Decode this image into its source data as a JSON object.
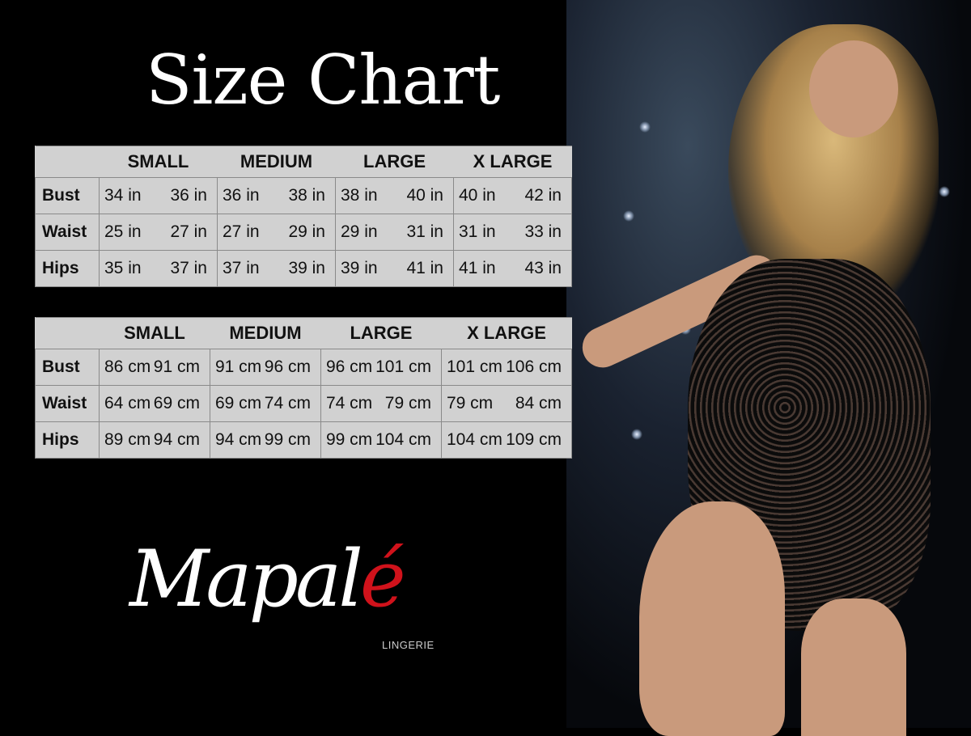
{
  "title": "Size Chart",
  "colors": {
    "background": "#000000",
    "table_bg": "#d1d1d1",
    "logo_accent": "#d0121b"
  },
  "inches_table": {
    "headers": [
      "SMALL",
      "MEDIUM",
      "LARGE",
      "X LARGE"
    ],
    "rows": [
      {
        "label": "Bust",
        "values": [
          "34 in",
          "36 in",
          "36 in",
          "38 in",
          "38 in",
          "40 in",
          "40 in",
          "42 in"
        ]
      },
      {
        "label": "Waist",
        "values": [
          "25 in",
          "27 in",
          "27 in",
          "29 in",
          "29 in",
          "31 in",
          "31 in",
          "33 in"
        ]
      },
      {
        "label": "Hips",
        "values": [
          "35 in",
          "37 in",
          "37 in",
          "39 in",
          "39 in",
          "41 in",
          "41 in",
          "43 in"
        ]
      }
    ]
  },
  "cm_table": {
    "headers": [
      "SMALL",
      "MEDIUM",
      "LARGE",
      "X LARGE"
    ],
    "rows": [
      {
        "label": "Bust",
        "values": [
          "86 cm",
          "91 cm",
          "91 cm",
          "96 cm",
          "96 cm",
          "101 cm",
          "101 cm",
          "106 cm"
        ]
      },
      {
        "label": "Waist",
        "values": [
          "64 cm",
          "69 cm",
          "69 cm",
          "74 cm",
          "74 cm",
          "79 cm",
          "79 cm",
          "84 cm"
        ]
      },
      {
        "label": "Hips",
        "values": [
          "89 cm",
          "94 cm",
          "94 cm",
          "99 cm",
          "99 cm",
          "104 cm",
          "104 cm",
          "109 cm"
        ]
      }
    ]
  },
  "logo": {
    "name_main": "Mapal",
    "name_accent": "é",
    "subtitle": "LINGERIE"
  }
}
